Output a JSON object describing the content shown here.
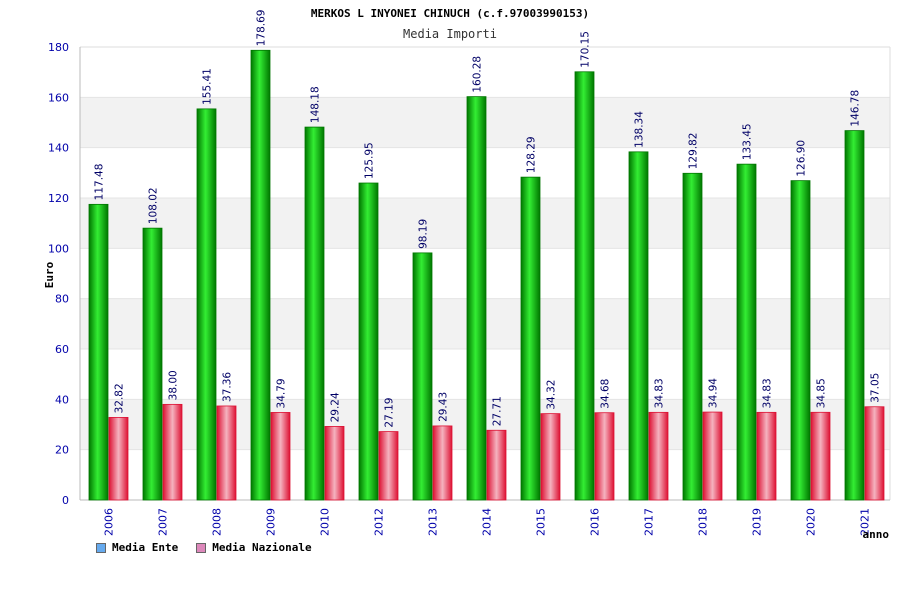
{
  "chart_data": {
    "type": "bar",
    "title": "MERKOS L INYONEI CHINUCH (c.f.97003990153)",
    "subtitle": "Media Importi",
    "xlabel": "anno",
    "ylabel": "Euro",
    "ylim": [
      0,
      180
    ],
    "yticks": [
      0,
      20,
      40,
      60,
      80,
      100,
      120,
      140,
      160,
      180
    ],
    "categories": [
      "2006",
      "2007",
      "2008",
      "2009",
      "2010",
      "2012",
      "2013",
      "2014",
      "2015",
      "2016",
      "2017",
      "2018",
      "2019",
      "2020",
      "2021"
    ],
    "series": [
      {
        "name": "Media Ente",
        "values": [
          117.48,
          108.02,
          155.41,
          178.69,
          148.18,
          125.95,
          98.19,
          160.28,
          128.29,
          170.15,
          138.34,
          129.82,
          133.45,
          126.9,
          146.78
        ]
      },
      {
        "name": "Media Nazionale",
        "values": [
          32.82,
          38.0,
          37.36,
          34.79,
          29.24,
          27.19,
          29.43,
          27.71,
          34.32,
          34.68,
          34.83,
          34.94,
          34.83,
          34.85,
          37.05
        ]
      }
    ],
    "colors": {
      "ente_bar": "#22cc22",
      "ente_dark": "#007700",
      "nazionale_bar": "#dd1133",
      "nazionale_light": "#f0a0b0",
      "legend_ente": "#66aaee",
      "legend_nazionale": "#dd88bb",
      "tick_text": "#0000aa",
      "label_text": "#000066",
      "band": "#f2f2f2"
    }
  },
  "legend": {
    "items": [
      {
        "label": "Media Ente"
      },
      {
        "label": "Media Nazionale"
      }
    ]
  }
}
